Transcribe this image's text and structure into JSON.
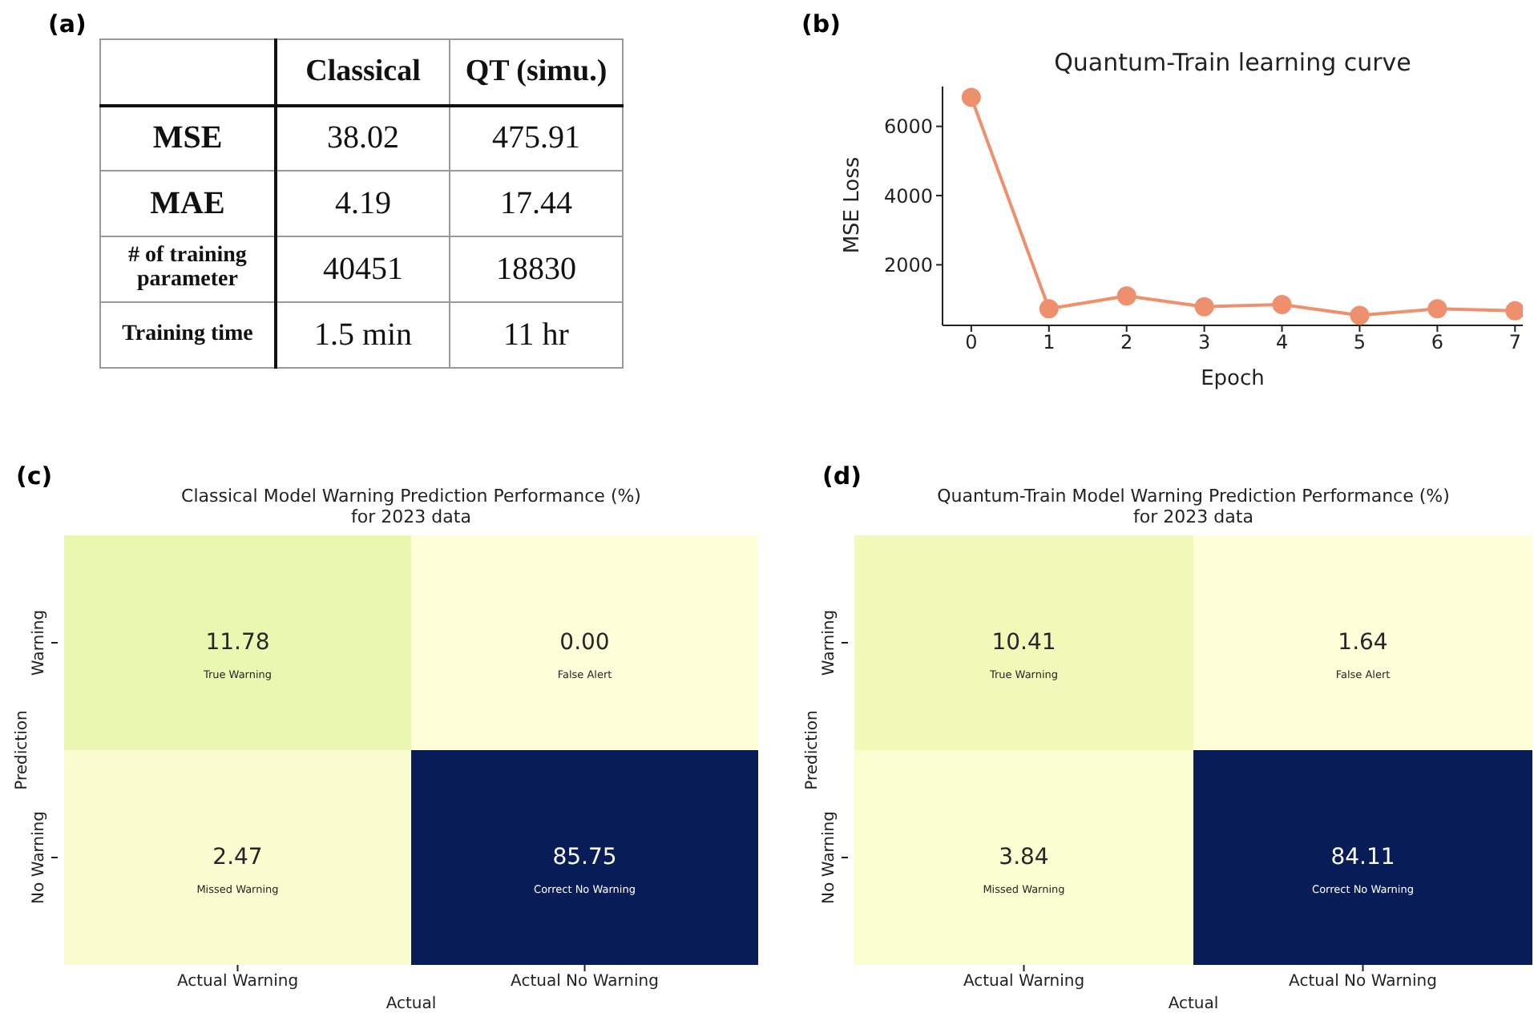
{
  "chart_data": [
    {
      "type": "other",
      "annotations": [
        "(a)"
      ],
      "categories": [
        null,
        "Classical",
        "QT (simu.)"
      ],
      "y_categories": [
        "MSE",
        "MAE",
        "# of training parameter",
        "Training time"
      ],
      "cell_labels": [
        [
          "38.02",
          "475.91"
        ],
        [
          "4.19",
          "17.44"
        ],
        [
          "40451",
          "18830"
        ],
        [
          "1.5 min",
          "11 hr"
        ]
      ]
    },
    {
      "type": "line",
      "title": "Quantum-Train learning curve",
      "xlabel": "Epoch",
      "ylabel": "MSE Loss",
      "annotations": [
        "(b)"
      ],
      "x": [
        0,
        1,
        2,
        3,
        4,
        5,
        6,
        7
      ],
      "series": [
        {
          "color": "#ee8f6e",
          "values": [
            6840,
            730,
            1100,
            790,
            850,
            540,
            730,
            670
          ]
        }
      ],
      "xlim": [
        -0.37,
        7.1
      ],
      "xticks": [
        0,
        1,
        2,
        3,
        4,
        5,
        6,
        7
      ],
      "ylim": [
        250,
        7150
      ],
      "yticks": [
        2000,
        4000,
        6000
      ],
      "marker": "circle",
      "grid": false,
      "legend": false
    },
    {
      "type": "heatmap",
      "title": "Classical Model Warning Prediction Performance (%)\nfor 2023 data",
      "xlabel": "Actual",
      "ylabel": "Prediction",
      "categories": [
        "Actual Warning",
        "Actual No Warning"
      ],
      "y_categories": [
        "Warning",
        "No Warning"
      ],
      "cells": [
        [
          11.78,
          0.0
        ],
        [
          2.47,
          85.75
        ]
      ],
      "cell_labels": [
        [
          "11.78\nTrue Warning",
          "0.00\nFalse Alert"
        ],
        [
          "2.47\nMissed Warning",
          "85.75\nCorrect No Warning"
        ]
      ],
      "annotations": [
        "(c)"
      ]
    },
    {
      "type": "heatmap",
      "title": "Quantum-Train Model Warning Prediction Performance (%)\nfor 2023 data",
      "xlabel": "Actual",
      "ylabel": "Prediction",
      "categories": [
        "Actual Warning",
        "Actual No Warning"
      ],
      "y_categories": [
        "Warning",
        "No Warning"
      ],
      "cells": [
        [
          10.41,
          1.64
        ],
        [
          3.84,
          84.11
        ]
      ],
      "cell_labels": [
        [
          "10.41\nTrue Warning",
          "1.64\nFalse Alert"
        ],
        [
          "3.84\nMissed Warning",
          "84.11\nCorrect No Warning"
        ]
      ],
      "annotations": [
        "(d)"
      ]
    }
  ]
}
